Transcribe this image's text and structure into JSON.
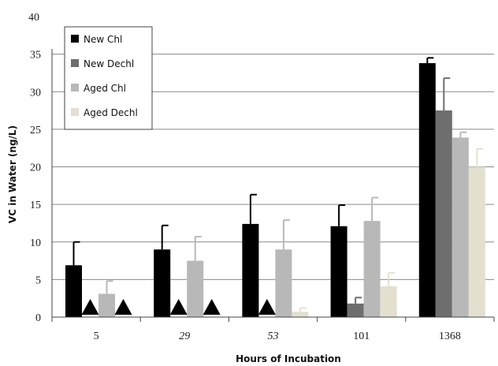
{
  "chart_data": {
    "type": "bar",
    "xlabel": "Hours of Incubation",
    "ylabel": "VC in Water (ng/L)",
    "ylim": [
      0,
      40
    ],
    "yticks": [
      "0",
      "5",
      "10",
      "15",
      "20",
      "25",
      "30",
      "35",
      "40"
    ],
    "categories": [
      "5",
      "29",
      "53",
      "101",
      "1368"
    ],
    "italic_categories": [
      false,
      true,
      true,
      false,
      false
    ],
    "legend_position": "top-left",
    "grid": true,
    "series": [
      {
        "name": "New Chl",
        "color": "#000000",
        "values": [
          6.9,
          9.0,
          12.4,
          12.1,
          33.8
        ],
        "errors": [
          3.1,
          3.2,
          3.9,
          2.8,
          0.7
        ]
      },
      {
        "name": "New Dechl",
        "color": "#6e6e6e",
        "values": [
          null,
          null,
          null,
          1.8,
          27.5
        ],
        "errors": [
          null,
          null,
          null,
          0.8,
          4.3
        ]
      },
      {
        "name": "Aged Chl",
        "color": "#b8b8b8",
        "values": [
          3.1,
          7.5,
          9.0,
          12.8,
          23.9
        ],
        "errors": [
          1.7,
          3.2,
          3.9,
          3.1,
          0.7
        ]
      },
      {
        "name": "Aged Dechl",
        "color": "#e4e0cf",
        "values": [
          null,
          null,
          0.7,
          4.1,
          20.0
        ],
        "errors": [
          null,
          null,
          0.5,
          1.8,
          2.4
        ]
      }
    ],
    "below_detection_markers": [
      {
        "category": "5",
        "series": "New Dechl"
      },
      {
        "category": "5",
        "series": "Aged Dechl"
      },
      {
        "category": "29",
        "series": "New Dechl"
      },
      {
        "category": "29",
        "series": "Aged Dechl"
      },
      {
        "category": "53",
        "series": "New Dechl"
      }
    ]
  }
}
